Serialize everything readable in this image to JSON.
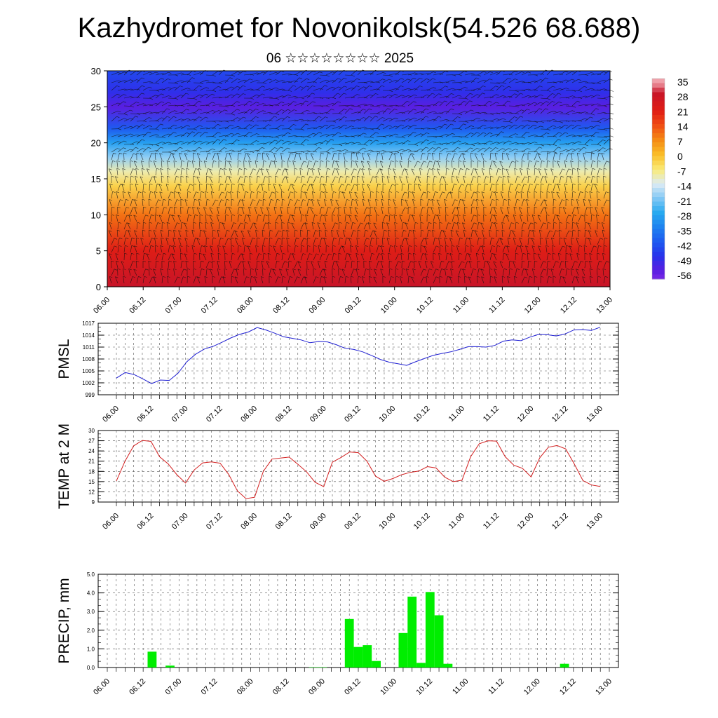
{
  "title": "Kazhydromet for Novonikolsk(54.526 68.688)",
  "subtitle": "06 ☆☆☆☆☆☆☆☆ 2025",
  "time_labels": [
    "06.00",
    "06.12",
    "07.00",
    "07.12",
    "08.00",
    "08.12",
    "09.00",
    "09.12",
    "10.00",
    "10.12",
    "11.00",
    "11.12",
    "12.00",
    "12.12",
    "13.00"
  ],
  "colors": {
    "pmsl_line": "#1f1fd2",
    "temp_line": "#d21f1f",
    "precip_bar": "#00ee00",
    "grid": "#555555",
    "palette_warm": "#e0201a",
    "palette_cold": "#3a2bd8"
  },
  "chart_data": [
    {
      "type": "heatmap",
      "title": "",
      "xlabel": "",
      "ylabel": "",
      "ylim": [
        0,
        30
      ],
      "y_ticks": [
        0,
        5,
        10,
        15,
        20,
        25,
        30
      ],
      "overlay": "wind barbs",
      "colorbar": {
        "labels": [
          "35",
          "28",
          "21",
          "14",
          "7",
          "0",
          "-7",
          "-14",
          "-21",
          "-28",
          "-35",
          "-42",
          "-49",
          "-56"
        ],
        "placement": "right"
      },
      "profile_by_height": [
        {
          "height": 0,
          "value": 30
        },
        {
          "height": 5,
          "value": 22
        },
        {
          "height": 10,
          "value": 10
        },
        {
          "height": 14,
          "value": -3
        },
        {
          "height": 16,
          "value": -10
        },
        {
          "height": 18,
          "value": -20
        },
        {
          "height": 20,
          "value": -30
        },
        {
          "height": 22,
          "value": -42
        },
        {
          "height": 25,
          "value": -56
        },
        {
          "height": 27,
          "value": -50
        },
        {
          "height": 30,
          "value": -45
        }
      ]
    },
    {
      "type": "line",
      "ylabel": "PMSL",
      "ylim": [
        999,
        1017
      ],
      "y_ticks": [
        999,
        1002,
        1005,
        1008,
        1011,
        1014,
        1017
      ],
      "grid": true,
      "series": [
        {
          "values": [
            1003.2,
            1004.6,
            1004.1,
            1003.0,
            1001.8,
            1002.7,
            1002.6,
            1004.4,
            1007.3,
            1009.2,
            1010.5,
            1011.2,
            1012.2,
            1013.3,
            1014.2,
            1014.8,
            1015.9,
            1015.3,
            1014.5,
            1013.6,
            1013.2,
            1012.8,
            1012.1,
            1012.4,
            1012.3,
            1011.6,
            1010.7,
            1010.4,
            1009.8,
            1008.9,
            1007.9,
            1007.2,
            1006.8,
            1006.4,
            1007.3,
            1008.1,
            1008.9,
            1009.4,
            1009.8,
            1010.4,
            1011.1,
            1011.1,
            1011.0,
            1011.4,
            1012.5,
            1012.8,
            1012.6,
            1013.5,
            1014.2,
            1014.1,
            1013.8,
            1014.3,
            1015.3,
            1015.4,
            1015.2,
            1016.0
          ]
        }
      ]
    },
    {
      "type": "line",
      "ylabel": "TEMP at 2 M",
      "ylim": [
        9,
        30
      ],
      "y_ticks": [
        9,
        12,
        15,
        18,
        21,
        24,
        27,
        30
      ],
      "grid": true,
      "series": [
        {
          "values": [
            15.2,
            21.0,
            25.5,
            27.1,
            26.8,
            22.3,
            20.2,
            17.0,
            14.6,
            18.4,
            20.5,
            20.8,
            20.4,
            17.1,
            12.3,
            10.0,
            10.4,
            18.0,
            21.6,
            21.9,
            22.2,
            20.1,
            17.9,
            14.8,
            13.5,
            20.7,
            22.1,
            23.7,
            23.5,
            21.0,
            16.6,
            15.1,
            15.9,
            17.0,
            17.7,
            18.1,
            19.4,
            19.0,
            16.3,
            15.0,
            15.4,
            22.3,
            26.1,
            27.0,
            26.9,
            22.3,
            19.8,
            18.9,
            16.4,
            22.0,
            25.1,
            25.6,
            24.6,
            20.2,
            15.3,
            14.0,
            13.6
          ]
        }
      ]
    },
    {
      "type": "bar",
      "ylabel": "PRECIP, mm",
      "ylim": [
        0,
        5
      ],
      "y_ticks": [
        "0.0",
        "1.0",
        "2.0",
        "3.0",
        "4.0",
        "5.0"
      ],
      "grid": true,
      "values": [
        0,
        0,
        0,
        0,
        0,
        0.85,
        0,
        0.1,
        0,
        0,
        0,
        0,
        0,
        0,
        0,
        0,
        0,
        0,
        0,
        0,
        0,
        0,
        0,
        0.02,
        0.02,
        0,
        0,
        2.6,
        1.1,
        1.2,
        0.35,
        0,
        0,
        1.85,
        3.8,
        0.25,
        4.05,
        2.8,
        0.2,
        0,
        0,
        0,
        0,
        0,
        0,
        0,
        0,
        0,
        0,
        0,
        0,
        0.2,
        0,
        0,
        0,
        0,
        0
      ]
    }
  ]
}
